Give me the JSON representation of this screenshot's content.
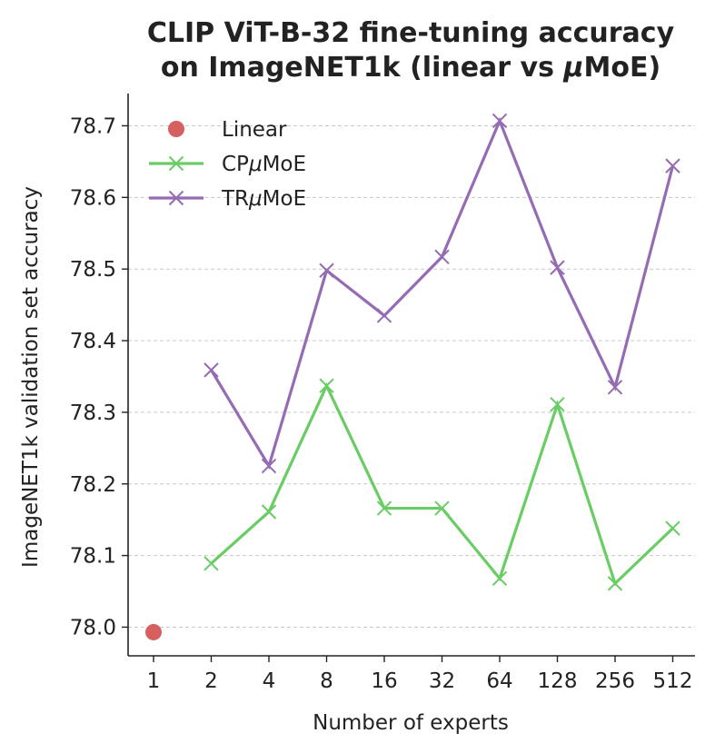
{
  "chart_data": {
    "type": "line",
    "title_line1": "CLIP ViT-B-32 fine-tuning accuracy",
    "title_line2_prefix": "on ImageNET1k (linear vs ",
    "title_line2_mu": "μ",
    "title_line2_suffix": "MoE)",
    "xlabel": "Number of experts",
    "ylabel": "ImageNET1k validation set accuracy",
    "categories": [
      "1",
      "2",
      "4",
      "8",
      "16",
      "32",
      "64",
      "128",
      "256",
      "512"
    ],
    "ylim": [
      77.96,
      78.745
    ],
    "yticks": [
      "78.0",
      "78.1",
      "78.2",
      "78.3",
      "78.4",
      "78.5",
      "78.6",
      "78.7"
    ],
    "grid": "horizontal dashed",
    "legend_position": "top-left",
    "series": [
      {
        "name": "Linear",
        "legend_prefix": "Linear",
        "legend_mu": "",
        "legend_suffix": "",
        "style": "point",
        "color": "#d65f5f",
        "x": [
          "1"
        ],
        "values": [
          77.993
        ]
      },
      {
        "name": "CPμMoE",
        "legend_prefix": "CP",
        "legend_mu": "μ",
        "legend_suffix": "MoE",
        "style": "line-x",
        "color": "#6acc64",
        "x": [
          "2",
          "4",
          "8",
          "16",
          "32",
          "64",
          "128",
          "256",
          "512"
        ],
        "values": [
          78.089,
          78.161,
          78.337,
          78.166,
          78.166,
          78.068,
          78.311,
          78.061,
          78.138
        ]
      },
      {
        "name": "TRμMoE",
        "legend_prefix": "TR",
        "legend_mu": "μ",
        "legend_suffix": "MoE",
        "style": "line-x",
        "color": "#956cb4",
        "x": [
          "2",
          "4",
          "8",
          "16",
          "32",
          "64",
          "128",
          "256",
          "512"
        ],
        "values": [
          78.359,
          78.225,
          78.498,
          78.435,
          78.517,
          78.707,
          78.502,
          78.335,
          78.644
        ]
      }
    ]
  }
}
